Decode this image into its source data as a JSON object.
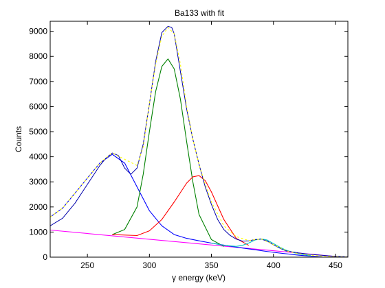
{
  "chart_data": {
    "type": "line",
    "title": "Ba133 with fit",
    "xlabel": "γ energy (keV)",
    "ylabel": "Counts",
    "xlim": [
      220,
      460
    ],
    "ylim": [
      0,
      9400
    ],
    "x_ticks": [
      250,
      300,
      350,
      400,
      450
    ],
    "y_ticks": [
      0,
      1000,
      2000,
      3000,
      4000,
      5000,
      6000,
      7000,
      8000,
      9000
    ],
    "grid": false,
    "legend": "none",
    "series": [
      {
        "role": "measured-spectrum",
        "color": "#0000aa",
        "x": [
          220,
          230,
          240,
          250,
          260,
          265,
          270,
          275,
          280,
          285,
          290,
          295,
          300,
          305,
          310,
          315,
          318,
          320,
          325,
          330,
          335,
          340,
          345,
          350,
          355,
          360,
          365,
          370,
          375,
          380,
          385,
          390,
          395,
          400,
          405,
          410,
          420,
          430,
          440,
          450,
          460
        ],
        "values": [
          1250,
          1550,
          2150,
          2900,
          3650,
          3950,
          4150,
          4050,
          3550,
          3300,
          3550,
          4500,
          6100,
          7800,
          8950,
          9200,
          9150,
          8900,
          7400,
          5900,
          4700,
          3700,
          2800,
          2100,
          1500,
          1100,
          870,
          720,
          640,
          650,
          700,
          720,
          640,
          490,
          360,
          250,
          170,
          110,
          70,
          30,
          10
        ]
      },
      {
        "role": "gaussian-peak-1",
        "color": "#0000ff",
        "x": [
          220,
          230,
          240,
          250,
          260,
          270,
          280,
          290,
          300,
          310,
          320,
          330,
          340,
          350,
          360,
          370,
          380,
          390,
          400,
          420,
          440,
          460
        ],
        "values": [
          1600,
          1950,
          2550,
          3150,
          3750,
          4100,
          3750,
          2800,
          1850,
          1250,
          900,
          750,
          650,
          560,
          480,
          400,
          330,
          260,
          190,
          80,
          0,
          0
        ]
      },
      {
        "role": "gaussian-peak-2",
        "color": "#008000",
        "x": [
          270,
          280,
          290,
          295,
          300,
          305,
          310,
          315,
          320,
          325,
          330,
          335,
          340,
          350,
          360
        ],
        "values": [
          900,
          1100,
          2000,
          3300,
          5000,
          6600,
          7600,
          7900,
          7500,
          6300,
          4600,
          3000,
          1700,
          700,
          430
        ]
      },
      {
        "role": "gaussian-peak-3",
        "color": "#ff0000",
        "x": [
          270,
          290,
          300,
          310,
          320,
          330,
          335,
          340,
          345,
          350,
          360,
          370,
          380
        ],
        "values": [
          900,
          860,
          1050,
          1500,
          2200,
          2950,
          3200,
          3250,
          3050,
          2600,
          1500,
          750,
          470
        ]
      },
      {
        "role": "gaussian-peak-4",
        "color": "#00bfbf",
        "x": [
          350,
          360,
          370,
          375,
          380,
          385,
          390,
          395,
          400,
          405,
          410,
          420,
          430
        ],
        "values": [
          560,
          470,
          430,
          470,
          560,
          680,
          730,
          680,
          540,
          400,
          280,
          130,
          60
        ]
      },
      {
        "role": "total-fit",
        "color": "#ffff00",
        "x": [
          220,
          230,
          240,
          250,
          260,
          270,
          280,
          290,
          295,
          300,
          305,
          310,
          315,
          320,
          325,
          330,
          335,
          340,
          345,
          350,
          360,
          370,
          380,
          390,
          400,
          410,
          420,
          430,
          440,
          450,
          460
        ],
        "values": [
          1600,
          1950,
          2550,
          3150,
          3750,
          4150,
          3900,
          3650,
          4400,
          6100,
          7700,
          8800,
          9150,
          8900,
          7700,
          6000,
          4700,
          3700,
          2900,
          2200,
          1250,
          820,
          660,
          730,
          500,
          260,
          140,
          80,
          40,
          15,
          5
        ]
      },
      {
        "role": "linear-background",
        "color": "#ff00ff",
        "x": [
          220,
          460
        ],
        "values": [
          1080,
          -20
        ]
      }
    ]
  }
}
